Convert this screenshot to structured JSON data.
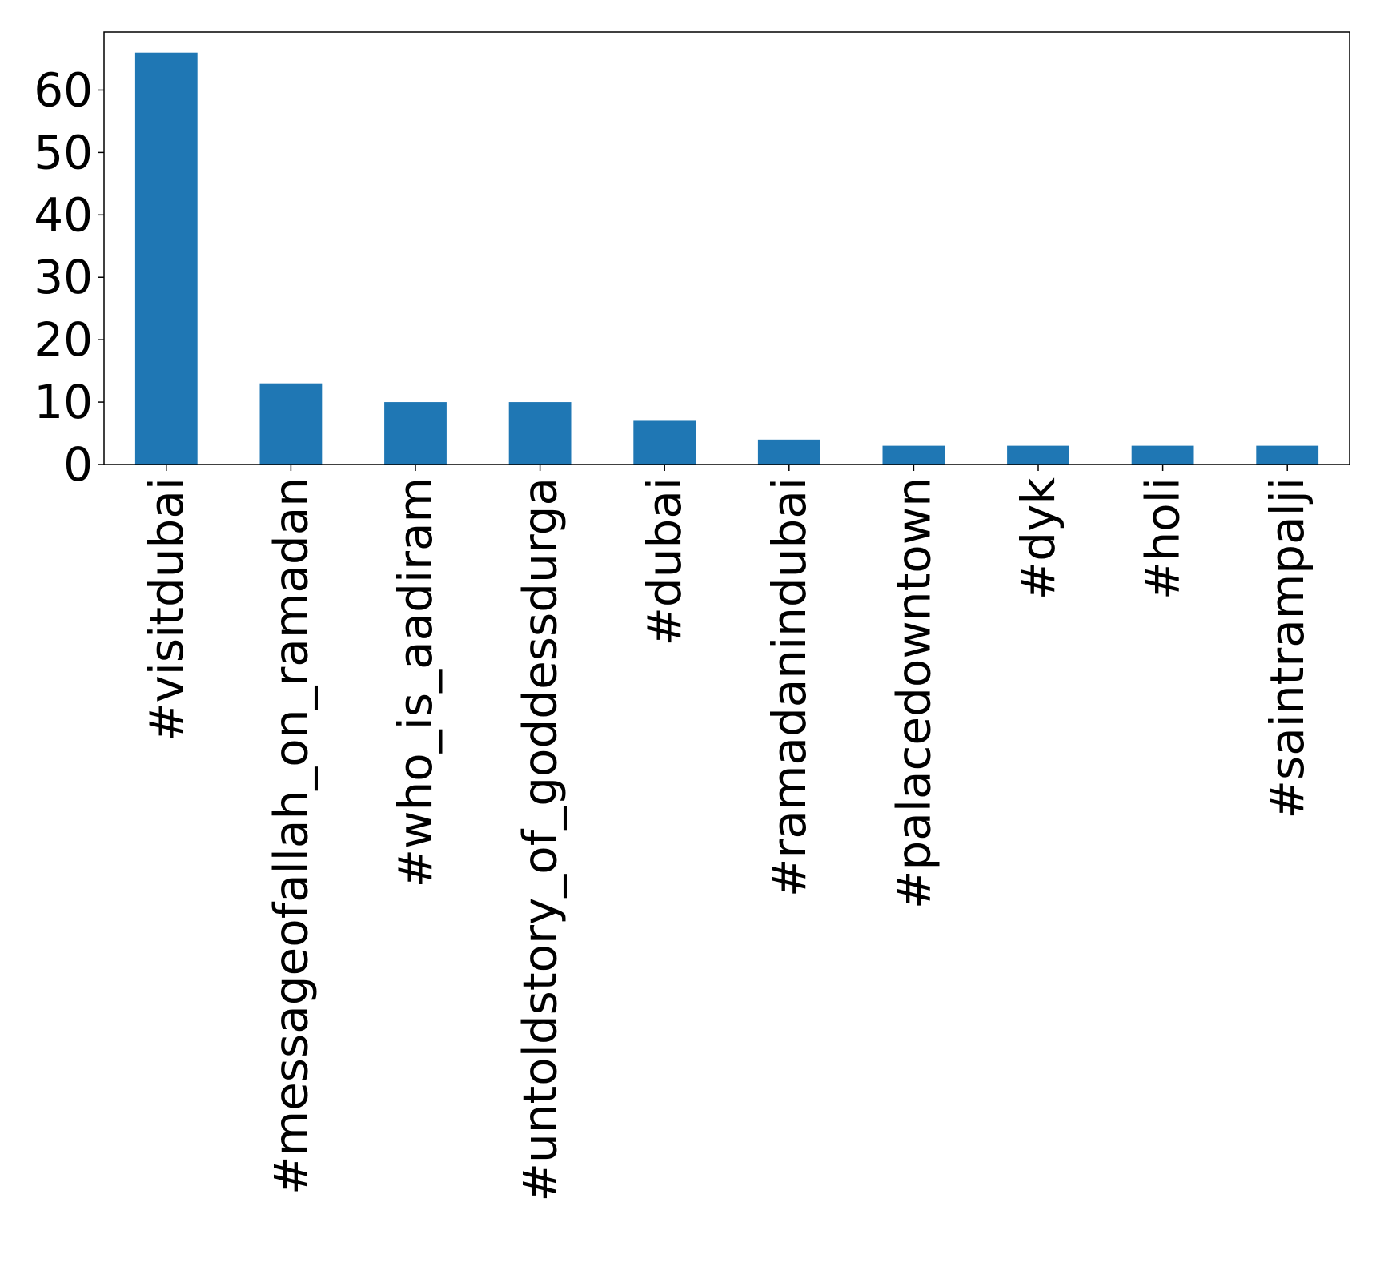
{
  "chart_data": {
    "type": "bar",
    "title": "",
    "xlabel": "",
    "ylabel": "",
    "categories": [
      "#visitdubai",
      "#messageofallah_on_ramadan",
      "#who_is_aadiram",
      "#untoldstory_of_goddessdurga",
      "#dubai",
      "#ramadanindubai",
      "#palacedowntown",
      "#dyk",
      "#holi",
      "#saintrampalji"
    ],
    "values": [
      66,
      13,
      10,
      10,
      7,
      4,
      3,
      3,
      3,
      3
    ],
    "ylim": [
      0,
      69.3
    ],
    "yticks": [
      "0",
      "10",
      "20",
      "30",
      "40",
      "50",
      "60"
    ],
    "ytick_values": [
      0,
      10,
      20,
      30,
      40,
      50,
      60
    ],
    "grid": false,
    "legend": "none",
    "colors": {
      "bar": "#1f77b4",
      "axis": "#000000",
      "background": "#ffffff"
    }
  }
}
